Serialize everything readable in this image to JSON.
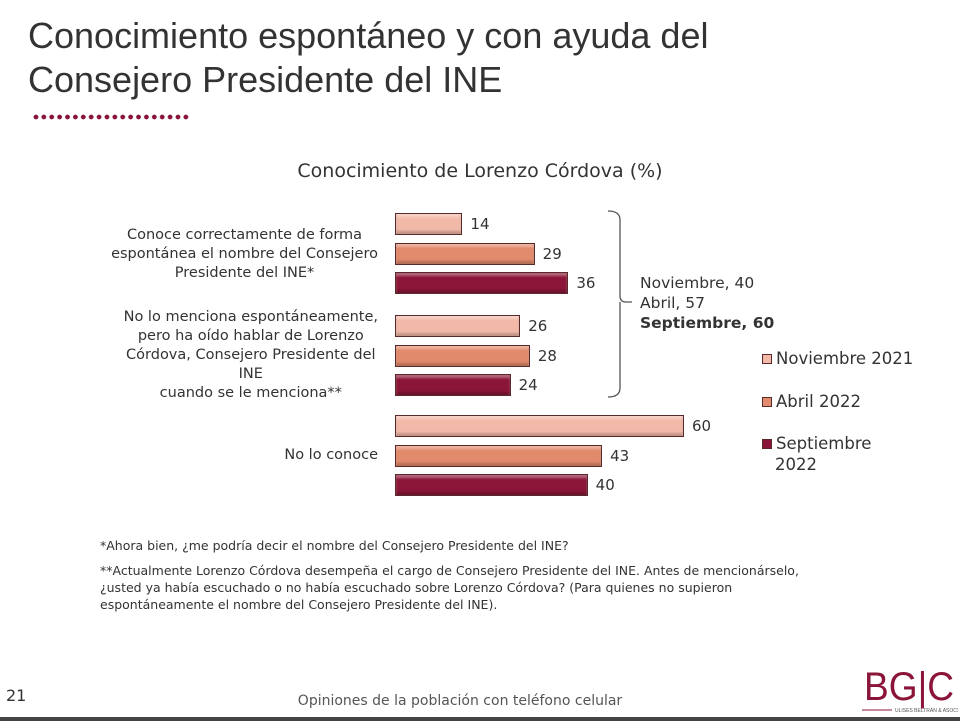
{
  "header": {
    "title_line1": "Conocimiento espontáneo y con ayuda del",
    "title_line2": "Consejero Presidente del INE"
  },
  "chart_data": {
    "type": "bar",
    "orientation": "horizontal",
    "title": "Conocimiento de Lorenzo Córdova (%)",
    "categories": [
      "Conoce correctamente de forma espontánea el nombre del Consejero Presidente del INE*",
      "No lo menciona espontáneamente, pero ha oído hablar de Lorenzo Córdova, Consejero Presidente del INE cuando se le menciona**",
      "No lo conoce"
    ],
    "category_lines": [
      [
        "Conoce correctamente de forma",
        "espontánea el nombre del Consejero",
        "Presidente del INE*"
      ],
      [
        "No lo menciona espontáneamente,",
        "pero ha oído hablar de Lorenzo",
        "Córdova, Consejero Presidente del",
        "INE",
        "cuando se le menciona**"
      ],
      [
        "No lo conoce"
      ]
    ],
    "series": [
      {
        "name": "Noviembre 2021",
        "color": "#f2b9a9",
        "values": [
          14,
          26,
          60
        ]
      },
      {
        "name": "Abril 2022",
        "color": "#e28a6c",
        "values": [
          29,
          28,
          43
        ]
      },
      {
        "name": "Septiembre 2022",
        "color": "#8b1538",
        "values": [
          36,
          24,
          40
        ]
      }
    ],
    "xlim": [
      0,
      60
    ],
    "grid": false,
    "legend": "right",
    "annotation": {
      "lines": [
        "Noviembre, 40",
        "Abril, 57",
        "Septiembre, 60"
      ]
    }
  },
  "legend_lines": [
    [
      "Noviembre 2021"
    ],
    [
      "Abril 2022"
    ],
    [
      "Septiembre",
      "2022"
    ]
  ],
  "notes": [
    "*Ahora bien, ¿me podría decir el nombre del Consejero Presidente del INE?",
    "**Actualmente Lorenzo Córdova desempeña el cargo de Consejero Presidente del INE. Antes de mencionárselo,",
    "¿usted ya había escuchado o no había escuchado sobre Lorenzo Córdova? (Para quienes no supieron",
    "espontáneamente el nombre del Consejero Presidente del INE)."
  ],
  "footer": {
    "page": "21",
    "text": "Opiniones de la población con teléfono celular",
    "logo": "BGC",
    "logo_sub": "ULISES BELTRÁN & ASOCS."
  }
}
